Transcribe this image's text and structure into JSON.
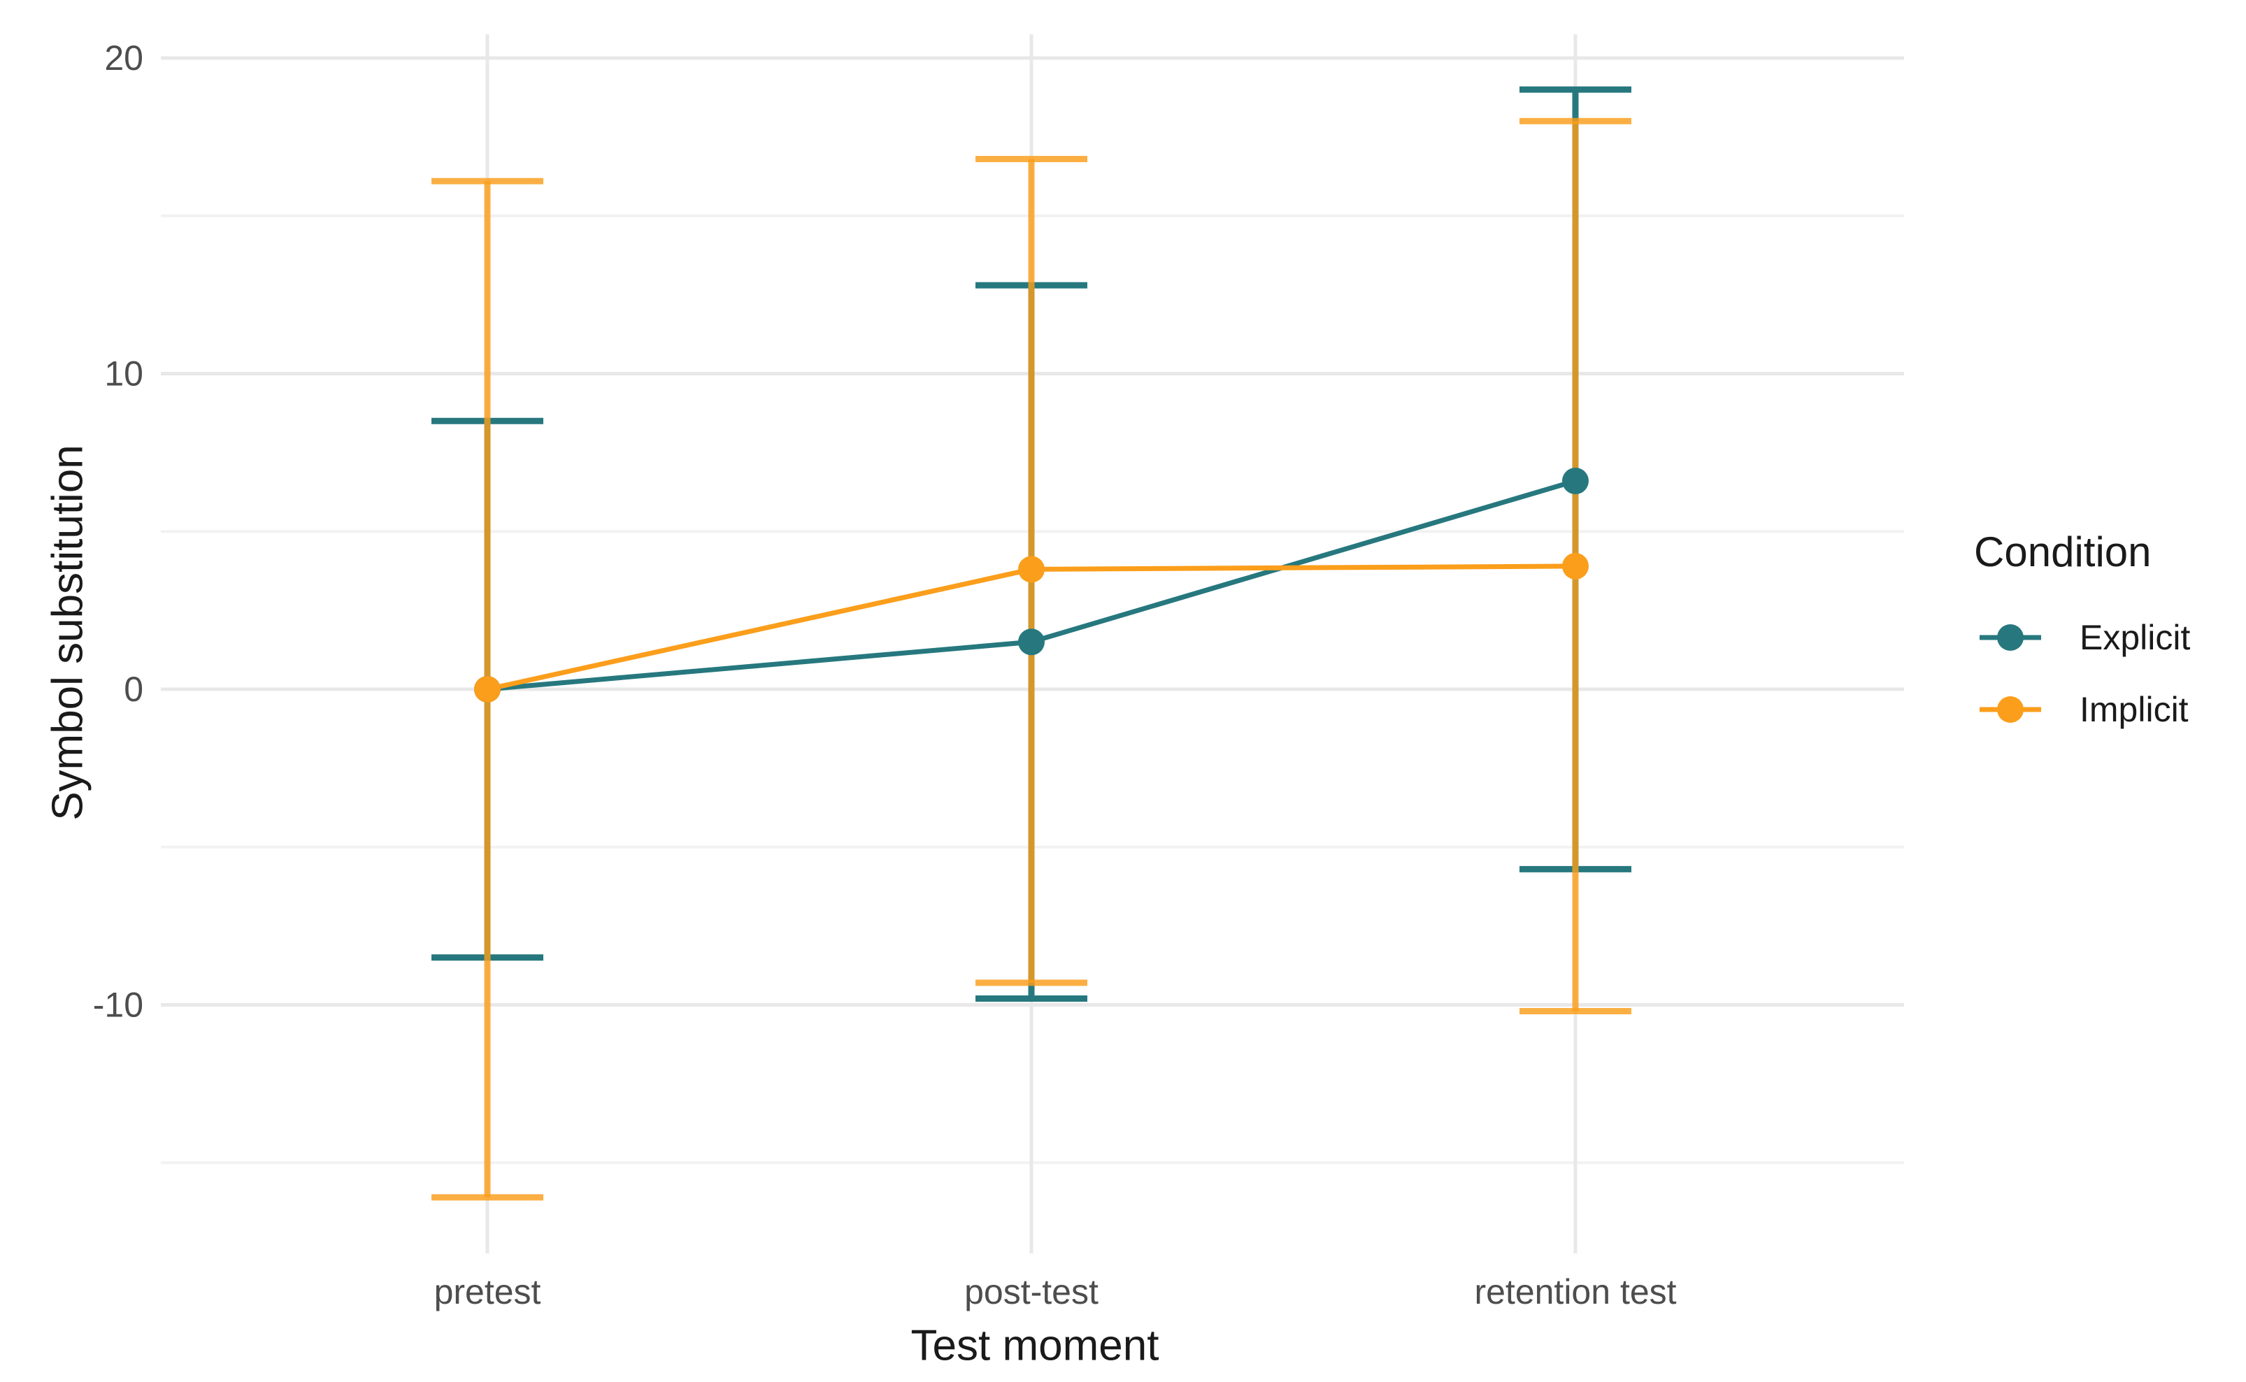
{
  "chart_data": {
    "type": "line",
    "title": "",
    "xlabel": "Test moment",
    "ylabel": "Symbol substitution",
    "categories": [
      "pretest",
      "post-test",
      "retention test"
    ],
    "y_ticks": [
      20,
      10,
      0,
      -10
    ],
    "y_minor_ticks": [
      15,
      5,
      -5,
      -15
    ],
    "ylim": [
      -17.9,
      20.8
    ],
    "grid": "major+minor, light gray on white",
    "legend": {
      "title": "Condition",
      "position": "right"
    },
    "series": [
      {
        "name": "Explicit",
        "color": "#26787E",
        "means": [
          0.0,
          1.5,
          6.6
        ],
        "ci_lower": [
          -8.5,
          -9.8,
          -5.7
        ],
        "ci_upper": [
          8.5,
          12.8,
          19.0
        ]
      },
      {
        "name": "Implicit",
        "color": "#FB9E1B",
        "means": [
          0.0,
          3.8,
          3.9
        ],
        "ci_lower": [
          -16.1,
          -9.3,
          -10.2
        ],
        "ci_upper": [
          16.1,
          16.8,
          18.0
        ]
      }
    ]
  }
}
